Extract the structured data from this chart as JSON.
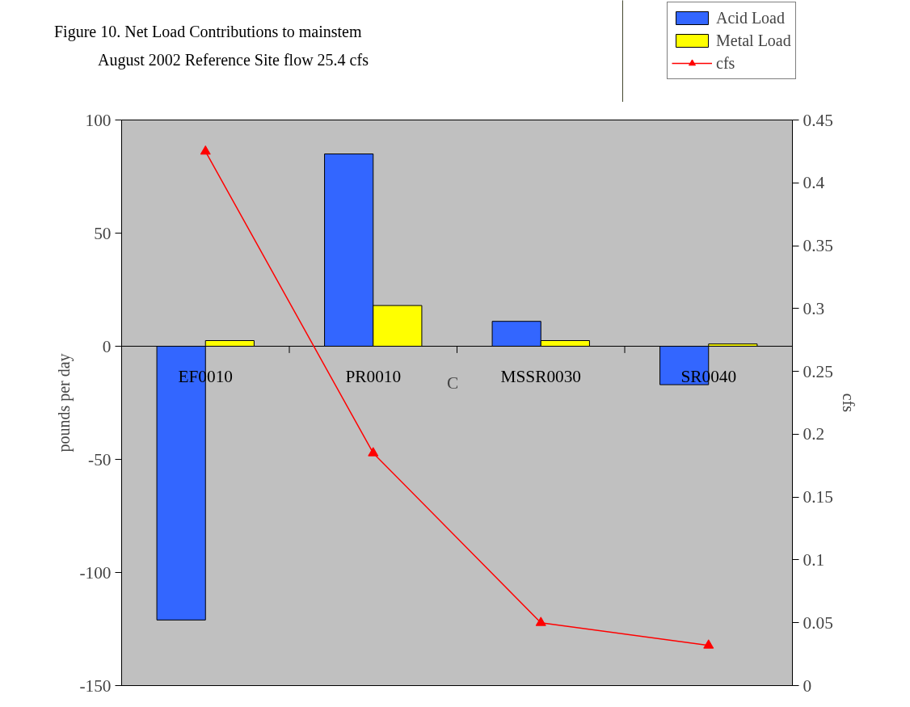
{
  "chart_data": {
    "type": "bar",
    "title": "Figure 10.  Net Load Contributions to mainstem",
    "subtitle": "August 2002 Reference Site flow 25.4 cfs",
    "ylabel": "pounds per day",
    "y2label": "cfs",
    "categories": [
      "EF0010",
      "PR0010",
      "MSSR0030",
      "SR0040"
    ],
    "series": [
      {
        "name": "Acid Load",
        "color": "#3366ff",
        "values": [
          -121,
          85,
          11,
          -17
        ]
      },
      {
        "name": "Metal Load",
        "color": "#ffff00",
        "values": [
          2.5,
          18,
          2.5,
          1
        ]
      },
      {
        "name": "cfs",
        "type": "line",
        "axis": "y2",
        "color": "#ff0000",
        "marker": "triangle",
        "values": [
          0.425,
          0.185,
          0.05,
          0.032
        ]
      }
    ],
    "ylim": [
      -150,
      100
    ],
    "yticks": [
      -150,
      -100,
      -50,
      0,
      50,
      100
    ],
    "y2lim": [
      0,
      0.45
    ],
    "y2ticks": [
      0,
      0.05,
      0.1,
      0.15,
      0.2,
      0.25,
      0.3,
      0.35,
      0.4,
      0.45
    ],
    "annotations": [
      "C"
    ],
    "grid": false,
    "legend": "top right"
  }
}
